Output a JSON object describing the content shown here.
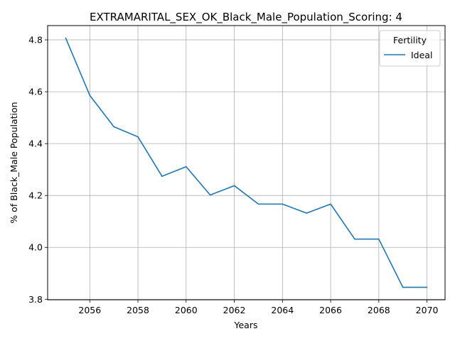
{
  "chart_data": {
    "type": "line",
    "title": "EXTRAMARITAL_SEX_OK_Black_Male_Population_Scoring: 4",
    "xlabel": "Years",
    "ylabel": "% of Black_Male Population",
    "xlim": [
      2054.25,
      2070.75
    ],
    "ylim": [
      3.798,
      4.855
    ],
    "xticks": [
      2056,
      2058,
      2060,
      2062,
      2064,
      2066,
      2068,
      2070
    ],
    "yticks": [
      3.8,
      4.0,
      4.2,
      4.4,
      4.6,
      4.8
    ],
    "grid": true,
    "legend": {
      "title": "Fertility",
      "position": "top-right"
    },
    "series": [
      {
        "name": "Ideal",
        "color": "#1f77b4",
        "x": [
          2055,
          2056,
          2057,
          2058,
          2059,
          2060,
          2061,
          2062,
          2063,
          2064,
          2065,
          2066,
          2067,
          2068,
          2069,
          2070
        ],
        "y": [
          4.807,
          4.586,
          4.465,
          4.426,
          4.274,
          4.311,
          4.202,
          4.238,
          4.167,
          4.167,
          4.132,
          4.167,
          4.032,
          4.032,
          3.846,
          3.846
        ]
      }
    ]
  }
}
